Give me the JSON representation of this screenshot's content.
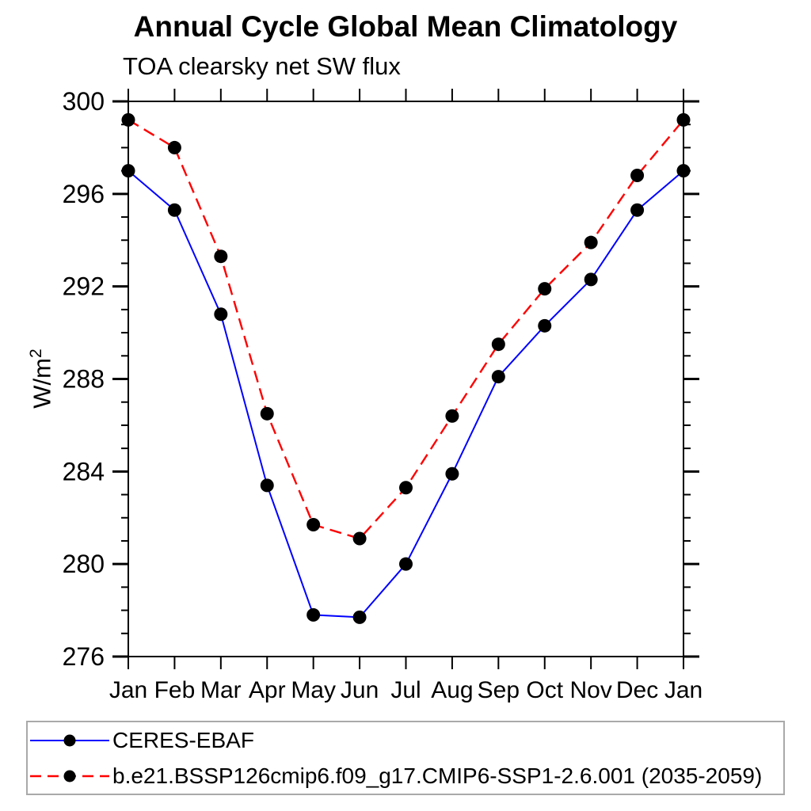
{
  "header": {
    "title": "Annual Cycle Global Mean Climatology",
    "subtitle": "TOA clearsky net SW flux"
  },
  "y_axis": {
    "label_base": "W/m",
    "label_exponent": "2"
  },
  "chart_data": {
    "type": "line",
    "title": "Annual Cycle Global Mean Climatology",
    "subtitle": "TOA clearsky net SW flux",
    "xlabel": "",
    "ylabel": "W/m^2",
    "categories": [
      "Jan",
      "Feb",
      "Mar",
      "Apr",
      "May",
      "Jun",
      "Jul",
      "Aug",
      "Sep",
      "Oct",
      "Nov",
      "Dec",
      "Jan"
    ],
    "ylim": [
      276,
      300
    ],
    "y_major_ticks": [
      300,
      296,
      292,
      288,
      284,
      280,
      276
    ],
    "y_minor_step": 1,
    "grid": false,
    "legend_position": "bottom",
    "series": [
      {
        "name": "CERES-EBAF",
        "color": "#0000ff",
        "line_style": "solid",
        "line_width": 2,
        "marker": "filled-circle",
        "marker_color": "#000000",
        "values": [
          297.0,
          295.3,
          290.8,
          283.4,
          277.8,
          277.7,
          280.0,
          283.9,
          288.1,
          290.3,
          292.3,
          295.3,
          297.0
        ]
      },
      {
        "name": "b.e21.BSSP126cmip6.f09_g17.CMIP6-SSP1-2.6.001 (2035-2059)",
        "color": "#ff0000",
        "line_style": "dashed",
        "line_width": 2.4,
        "marker": "filled-circle",
        "marker_color": "#000000",
        "values": [
          299.2,
          298.0,
          293.3,
          286.5,
          281.7,
          281.1,
          283.3,
          286.4,
          289.5,
          291.9,
          293.9,
          296.8,
          299.2
        ]
      }
    ]
  },
  "colors": {
    "background": "#ffffff",
    "axis": "#000000",
    "tick_label": "#000000",
    "legend_border": "#a9a9a9"
  }
}
